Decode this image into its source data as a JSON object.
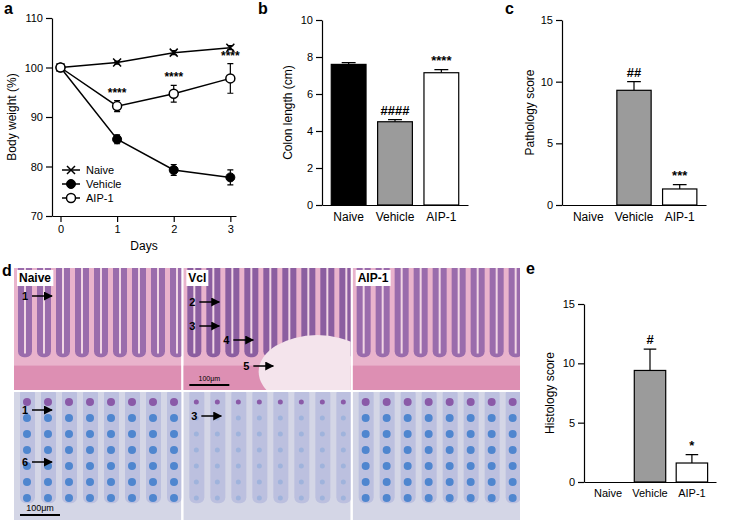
{
  "chart_data": [
    {
      "type": "line",
      "title": "a",
      "xlabel": "Days",
      "ylabel": "Body weight (%)",
      "x": [
        0,
        1,
        2,
        3
      ],
      "xlim": [
        -0.15,
        3.1
      ],
      "xticks": [
        0,
        1,
        2,
        3
      ],
      "ylim": [
        70,
        110
      ],
      "yticks": [
        70,
        80,
        90,
        100,
        110
      ],
      "legend": "lower left",
      "series": [
        {
          "name": "Naive",
          "color": "#000000",
          "marker": "x",
          "values": [
            100,
            101,
            103,
            104
          ],
          "errors": [
            0,
            0.3,
            0.4,
            0.4
          ]
        },
        {
          "name": "Vehicle",
          "color": "#000000",
          "marker": "circle",
          "values": [
            100,
            85.5,
            79.3,
            77.8
          ],
          "errors": [
            0,
            0.9,
            1.1,
            1.5
          ]
        },
        {
          "name": "AIP-1",
          "color": "#000000",
          "marker": "circle-open",
          "values": [
            100,
            92.2,
            94.7,
            97.8
          ],
          "errors": [
            0,
            1.1,
            1.7,
            3.0
          ],
          "annotations": [
            null,
            "****",
            "****",
            "****"
          ]
        }
      ]
    },
    {
      "type": "bar",
      "title": "b",
      "ylabel": "Colon length (cm)",
      "categories": [
        "Naive",
        "Vehicle",
        "AIP-1"
      ],
      "values": [
        7.6,
        4.5,
        7.15
      ],
      "errors": [
        0.1,
        0.12,
        0.17
      ],
      "colors": [
        "#000000",
        "#9b9b9b",
        "#ffffff"
      ],
      "ylim": [
        0,
        10
      ],
      "yticks": [
        0,
        2,
        4,
        6,
        8,
        10
      ],
      "annotations": [
        null,
        "####",
        "****"
      ]
    },
    {
      "type": "bar",
      "title": "c",
      "ylabel": "Pathology score",
      "categories": [
        "Naive",
        "Vehicle",
        "AIP-1"
      ],
      "values": [
        0,
        9.3,
        1.3
      ],
      "errors": [
        0,
        0.7,
        0.35
      ],
      "colors": [
        "#000000",
        "#9b9b9b",
        "#ffffff"
      ],
      "ylim": [
        0,
        15
      ],
      "yticks": [
        0,
        5,
        10,
        15
      ],
      "annotations": [
        null,
        "##",
        "***"
      ]
    },
    {
      "type": "bar",
      "title": "e",
      "ylabel": "Histology score",
      "categories": [
        "Naive",
        "Vehicle",
        "AIP-1"
      ],
      "values": [
        0,
        9.4,
        1.6
      ],
      "errors": [
        0,
        1.8,
        0.7
      ],
      "colors": [
        "#000000",
        "#9b9b9b",
        "#ffffff"
      ],
      "ylim": [
        0,
        15
      ],
      "yticks": [
        0,
        5,
        10,
        15
      ],
      "annotations": [
        null,
        "#",
        "*"
      ]
    }
  ],
  "micrographs": {
    "title": "d",
    "rows": [
      {
        "panels": [
          {
            "label": "Naive",
            "arrows": [
              "1"
            ]
          },
          {
            "label": "Vcl",
            "arrows": [
              "2",
              "3",
              "4",
              "5"
            ]
          },
          {
            "label": "AIP-1",
            "arrows": []
          }
        ],
        "scale_bar": "100μm"
      },
      {
        "panels": [
          {
            "arrows": [
              "1",
              "6"
            ]
          },
          {
            "arrows": [
              "3"
            ]
          },
          {
            "arrows": []
          }
        ],
        "scale_bar": "100μm"
      }
    ]
  }
}
